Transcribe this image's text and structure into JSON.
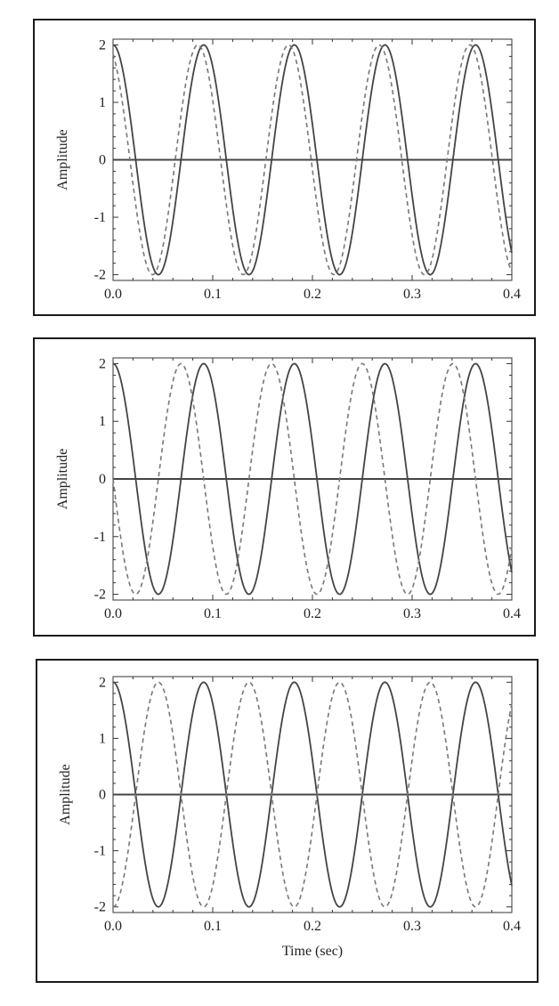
{
  "chart_data": [
    {
      "type": "line",
      "title": "",
      "xlabel": "",
      "ylabel": "Amplitude",
      "xlim": [
        0.0,
        0.4
      ],
      "ylim": [
        -2.1,
        2.1
      ],
      "xticks": [
        "0.0",
        "0.1",
        "0.2",
        "0.3",
        "0.4"
      ],
      "yticks": [
        "2",
        "1",
        "0",
        "-1",
        "-2"
      ],
      "grid": false,
      "series": [
        {
          "style": "solid",
          "amplitude": 2,
          "frequency_hz": 11,
          "phase_rad": 0
        },
        {
          "style": "dashed",
          "amplitude": 2,
          "frequency_hz": 11,
          "phase_rad": 0.4
        }
      ]
    },
    {
      "type": "line",
      "title": "",
      "xlabel": "",
      "ylabel": "Amplitude",
      "xlim": [
        0.0,
        0.4
      ],
      "ylim": [
        -2.1,
        2.1
      ],
      "xticks": [
        "0.0",
        "0.1",
        "0.2",
        "0.3",
        "0.4"
      ],
      "yticks": [
        "2",
        "1",
        "0",
        "-1",
        "-2"
      ],
      "grid": false,
      "series": [
        {
          "style": "solid",
          "amplitude": 2,
          "frequency_hz": 11,
          "phase_rad": 0
        },
        {
          "style": "dashed",
          "amplitude": 2,
          "frequency_hz": 11,
          "phase_rad": 1.5708
        }
      ]
    },
    {
      "type": "line",
      "title": "",
      "xlabel": "Time (sec)",
      "ylabel": "Amplitude",
      "xlim": [
        0.0,
        0.4
      ],
      "ylim": [
        -2.1,
        2.1
      ],
      "xticks": [
        "0.0",
        "0.1",
        "0.2",
        "0.3",
        "0.4"
      ],
      "yticks": [
        "2",
        "1",
        "0",
        "-1",
        "-2"
      ],
      "grid": false,
      "series": [
        {
          "style": "solid",
          "amplitude": 2,
          "frequency_hz": 11,
          "phase_rad": 0
        },
        {
          "style": "dashed",
          "amplitude": 2,
          "frequency_hz": 11,
          "phase_rad": 3.14159
        }
      ]
    }
  ]
}
